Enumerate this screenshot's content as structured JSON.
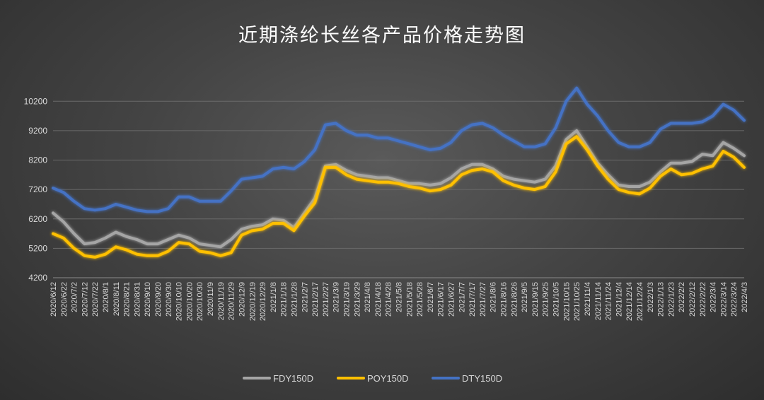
{
  "chart_data": {
    "type": "line",
    "title": "近期涤纶长丝各产品价格走势图",
    "xlabel": "",
    "ylabel": "",
    "ylim": [
      4200,
      11000
    ],
    "yticks": [
      4200,
      5200,
      6200,
      7200,
      8200,
      9200,
      10200
    ],
    "grid": true,
    "legend_position": "bottom",
    "x_tick_labels": [
      "2020/6/12",
      "2020/6/22",
      "2020/7/2",
      "2020/7/12",
      "2020/7/22",
      "2020/8/1",
      "2020/8/11",
      "2020/8/21",
      "2020/8/31",
      "2020/9/10",
      "2020/9/20",
      "2020/9/30",
      "2020/10/10",
      "2020/10/20",
      "2020/10/30",
      "2020/11/9",
      "2020/11/19",
      "2020/11/29",
      "2020/12/9",
      "2020/12/19",
      "2020/12/29",
      "2021/1/8",
      "2021/1/18",
      "2021/1/28",
      "2021/2/7",
      "2021/2/17",
      "2021/2/27",
      "2021/3/9",
      "2021/3/19",
      "2021/3/29",
      "2021/4/8",
      "2021/4/18",
      "2021/4/28",
      "2021/5/8",
      "2021/5/18",
      "2021/5/28",
      "2021/6/7",
      "2021/6/17",
      "2021/6/27",
      "2021/7/7",
      "2021/7/17",
      "2021/7/27",
      "2021/8/6",
      "2021/8/16",
      "2021/8/26",
      "2021/9/5",
      "2021/9/15",
      "2021/9/25",
      "2021/10/5",
      "2021/10/15",
      "2021/10/25",
      "2021/11/4",
      "2021/11/14",
      "2021/11/24",
      "2021/12/4",
      "2021/12/14",
      "2021/12/24",
      "2022/1/3",
      "2022/1/13",
      "2022/1/23",
      "2022/2/2",
      "2022/2/12",
      "2022/2/22",
      "2022/3/4",
      "2022/3/14",
      "2022/3/24",
      "2022/4/3"
    ],
    "series": [
      {
        "name": "FDY150D",
        "color": "#a5a5a5",
        "values": [
          6400,
          6100,
          5700,
          5350,
          5400,
          5550,
          5750,
          5600,
          5500,
          5350,
          5350,
          5500,
          5650,
          5550,
          5350,
          5300,
          5250,
          5500,
          5850,
          5950,
          6000,
          6200,
          6150,
          5900,
          6400,
          6900,
          8000,
          8050,
          7850,
          7700,
          7650,
          7600,
          7600,
          7500,
          7400,
          7400,
          7350,
          7400,
          7600,
          7900,
          8050,
          8050,
          7900,
          7650,
          7550,
          7500,
          7450,
          7550,
          8000,
          8900,
          9200,
          8650,
          8100,
          7700,
          7350,
          7300,
          7300,
          7450,
          7800,
          8100,
          8100,
          8150,
          8400,
          8350,
          8800,
          8600,
          8350
        ]
      },
      {
        "name": "POY150D",
        "color": "#ffc000",
        "values": [
          5700,
          5550,
          5200,
          4950,
          4900,
          5000,
          5250,
          5150,
          5000,
          4950,
          4950,
          5100,
          5400,
          5350,
          5100,
          5050,
          4950,
          5050,
          5650,
          5800,
          5850,
          6050,
          6050,
          5800,
          6300,
          6750,
          7950,
          7950,
          7700,
          7550,
          7500,
          7450,
          7450,
          7400,
          7300,
          7250,
          7150,
          7200,
          7350,
          7700,
          7850,
          7900,
          7800,
          7500,
          7350,
          7250,
          7200,
          7300,
          7800,
          8750,
          9000,
          8550,
          8000,
          7550,
          7200,
          7100,
          7050,
          7250,
          7650,
          7900,
          7700,
          7750,
          7900,
          8000,
          8500,
          8300,
          7950
        ]
      },
      {
        "name": "DTY150D",
        "color": "#4472c4",
        "values": [
          7250,
          7100,
          6800,
          6550,
          6500,
          6550,
          6700,
          6600,
          6500,
          6450,
          6450,
          6550,
          6950,
          6950,
          6800,
          6800,
          6800,
          7150,
          7550,
          7600,
          7650,
          7900,
          7950,
          7900,
          8150,
          8550,
          9400,
          9450,
          9200,
          9050,
          9050,
          8950,
          8950,
          8850,
          8750,
          8650,
          8550,
          8600,
          8800,
          9200,
          9400,
          9450,
          9300,
          9050,
          8850,
          8650,
          8650,
          8750,
          9300,
          10200,
          10650,
          10100,
          9700,
          9200,
          8800,
          8650,
          8650,
          8800,
          9250,
          9450,
          9450,
          9450,
          9500,
          9700,
          10100,
          9900,
          9550
        ]
      }
    ]
  }
}
